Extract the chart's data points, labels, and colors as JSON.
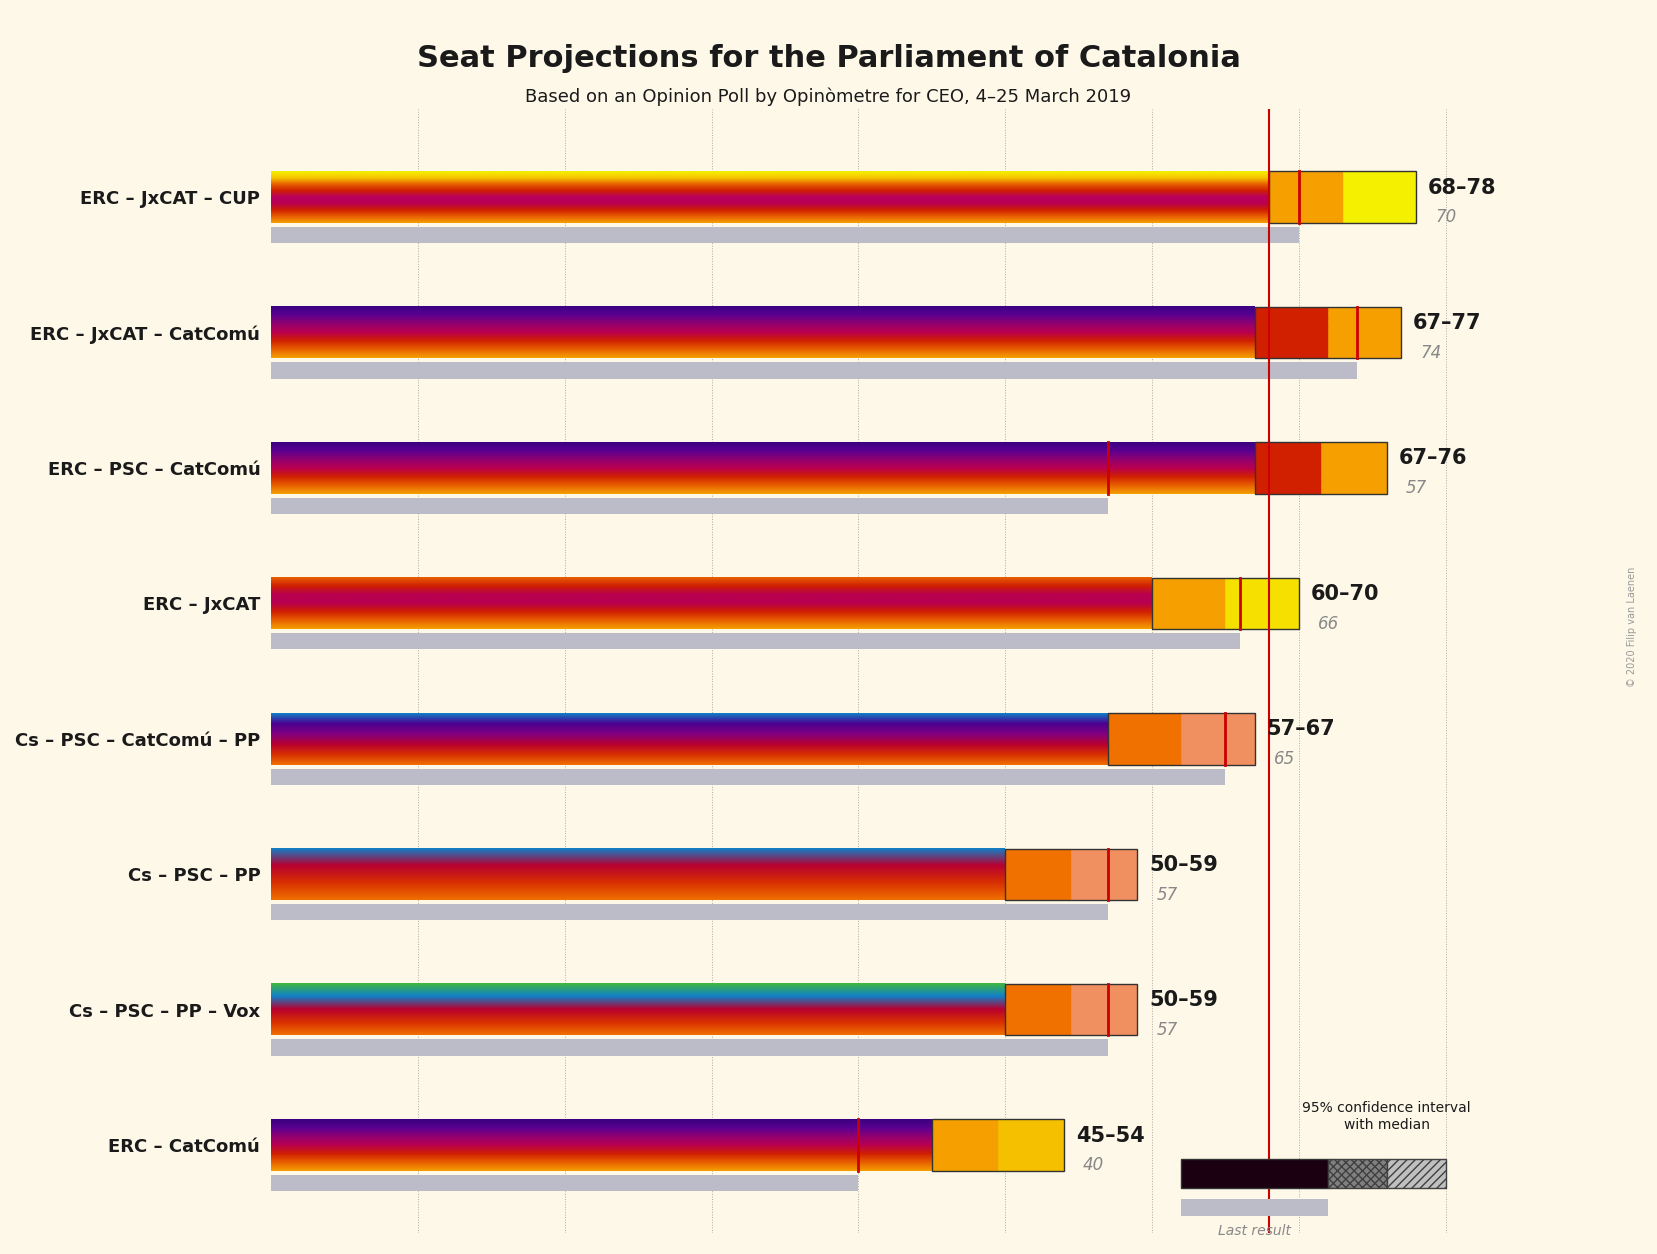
{
  "title": "Seat Projections for the Parliament of Catalonia",
  "subtitle": "Based on an Opinion Poll by Opinòmetre for CEO, 4–25 March 2019",
  "copyright": "© 2020 Filip van Laenen",
  "coalitions": [
    {
      "name": "ERC – JxCAT – CUP",
      "ci_low": 68,
      "ci_high": 78,
      "median": 70,
      "last": 70,
      "gradient": [
        [
          "#f5a800",
          "#e05000",
          "#c00040",
          "#c00040",
          "#c00040",
          "#e05000",
          "#f5a800",
          "#f5e800"
        ]
      ],
      "ci_left_color": "#f5a800",
      "ci_right_color": "#f5e800",
      "ci_hatch_color_left": "#c06000",
      "ci_hatch_color_right": "#c0a000",
      "last_bar_color": "#c8c8d0",
      "bar_bottom_color": "#f5e800"
    },
    {
      "name": "ERC – JxCAT – CatComú",
      "ci_low": 67,
      "ci_high": 77,
      "median": 74,
      "last": 74,
      "gradient": [
        [
          "#f5a800",
          "#e05000",
          "#c00040",
          "#7b0090",
          "#3b0080"
        ]
      ],
      "ci_left_color": "#c00060",
      "ci_right_color": "#f5a000",
      "ci_hatch_color_left": "#800080",
      "ci_hatch_color_right": "#c06000",
      "last_bar_color": "#c8c8d0",
      "bar_bottom_color": "#3b0080"
    },
    {
      "name": "ERC – PSC – CatComú",
      "ci_low": 67,
      "ci_high": 76,
      "median": 57,
      "last": 57,
      "gradient": [
        [
          "#f5a800",
          "#e05000",
          "#c00040",
          "#7b0090",
          "#3b0080"
        ]
      ],
      "ci_left_color": "#c00060",
      "ci_right_color": "#f5a000",
      "ci_hatch_color_left": "#800080",
      "ci_hatch_color_right": "#c06000",
      "last_bar_color": "#c8c8d0",
      "bar_bottom_color": "#3b0080"
    },
    {
      "name": "ERC – JxCAT",
      "ci_low": 60,
      "ci_high": 70,
      "median": 66,
      "last": 66,
      "gradient": [
        [
          "#f5a800",
          "#e05000",
          "#c00040",
          "#c00040",
          "#e05000",
          "#f5a800"
        ]
      ],
      "ci_left_color": "#f5a800",
      "ci_right_color": "#f5d000",
      "ci_hatch_color_left": "#c06000",
      "ci_hatch_color_right": "#c09000",
      "last_bar_color": "#c8c8d0",
      "bar_bottom_color": "#c00040"
    },
    {
      "name": "Cs – PSC – CatComú – PP",
      "ci_low": 57,
      "ci_high": 67,
      "median": 65,
      "last": 65,
      "gradient": [
        [
          "#f07000",
          "#c00020",
          "#7b0090",
          "#3b0080",
          "#1a80c0"
        ]
      ],
      "ci_left_color": "#f07000",
      "ci_right_color": "#f0a060",
      "ci_hatch_color_left": "#c04000",
      "ci_hatch_color_right": "#c07040",
      "last_bar_color": "#c8c8d0",
      "bar_bottom_color": "#1a80c0"
    },
    {
      "name": "Cs – PSC – PP",
      "ci_low": 50,
      "ci_high": 59,
      "median": 57,
      "last": 57,
      "gradient": [
        [
          "#f07000",
          "#c00020",
          "#1a80c0"
        ]
      ],
      "ci_left_color": "#f07000",
      "ci_right_color": "#f0a060",
      "ci_hatch_color_left": "#c04000",
      "ci_hatch_color_right": "#c07040",
      "last_bar_color": "#c8c8d0",
      "bar_bottom_color": "#1a80c0"
    },
    {
      "name": "Cs – PSC – PP – Vox",
      "ci_low": 50,
      "ci_high": 59,
      "median": 57,
      "last": 57,
      "gradient": [
        [
          "#f07000",
          "#c00020",
          "#1a80c0",
          "#40b840"
        ]
      ],
      "ci_left_color": "#f07000",
      "ci_right_color": "#f0a060",
      "ci_hatch_color_left": "#c04000",
      "ci_hatch_color_right": "#c07040",
      "last_bar_color": "#c8c8d0",
      "bar_bottom_color": "#40b840"
    },
    {
      "name": "ERC – CatComú",
      "ci_low": 45,
      "ci_high": 54,
      "median": 40,
      "last": 40,
      "gradient": [
        [
          "#f5a800",
          "#e05000",
          "#c00040",
          "#7b0090",
          "#3b0080"
        ]
      ],
      "ci_left_color": "#f5a800",
      "ci_right_color": "#f5d000",
      "ci_hatch_color_left": "#800080",
      "ci_hatch_color_right": "#c09000",
      "last_bar_color": "#c8c8d0",
      "bar_bottom_color": "#3b0080"
    }
  ],
  "xmin": 0,
  "xmax": 90,
  "majority_line": 68,
  "bg_color": "#fdf8e8",
  "bar_height": 0.38,
  "gray_bar_height": 0.12,
  "grid_ticks": [
    10,
    20,
    30,
    40,
    50,
    60,
    70,
    80,
    90
  ]
}
